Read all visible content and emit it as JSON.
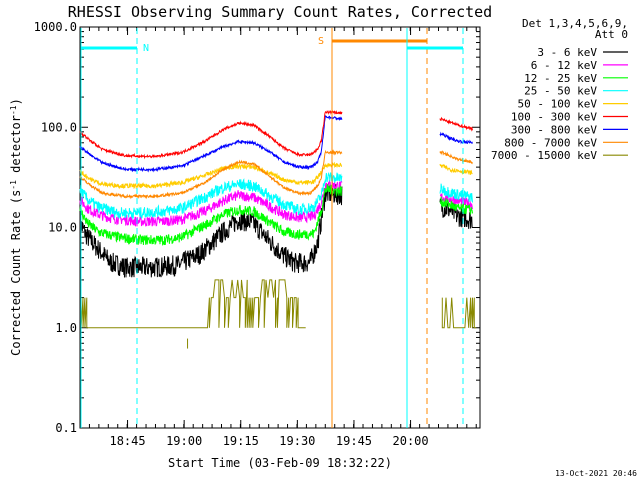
{
  "chart_data": {
    "type": "line",
    "title": "RHESSI Observing Summary Count Rates, Corrected",
    "xlabel": "Start Time (03-Feb-09 18:32:22)",
    "ylabel_pre": "Corrected Count Rate (s",
    "ylabel_exp1": "-1",
    "ylabel_mid": " detector",
    "ylabel_exp2": "-1",
    "ylabel_post": ")",
    "yscale": "log",
    "ylim": [
      0.1,
      1000
    ],
    "xlim_minutes": [
      0,
      106
    ],
    "x_ticks": [
      {
        "label": "18:45",
        "minute": 12.6
      },
      {
        "label": "19:00",
        "minute": 27.6
      },
      {
        "label": "19:15",
        "minute": 42.6
      },
      {
        "label": "19:30",
        "minute": 57.6
      },
      {
        "label": "19:45",
        "minute": 72.6
      },
      {
        "label": "20:00",
        "minute": 87.6
      }
    ],
    "y_ticks": [
      {
        "label": "1000.0",
        "value": 1000
      },
      {
        "label": "100.0",
        "value": 100
      },
      {
        "label": "10.0",
        "value": 10
      },
      {
        "label": "1.0",
        "value": 1
      },
      {
        "label": "0.1",
        "value": 0.1
      }
    ],
    "legend_title_1": "Det 1,3,4,5,6,9,",
    "legend_title_2": "Att 0",
    "timestamp": "13-Oct-2021 20:46",
    "data_gaps_minutes": [
      [
        69.5,
        95.4
      ]
    ],
    "series": [
      {
        "name": "3 - 6 keV",
        "color": "#000000",
        "noise": 0.24,
        "points": [
          [
            0,
            11
          ],
          [
            2,
            8
          ],
          [
            5,
            6
          ],
          [
            8,
            4.5
          ],
          [
            12,
            4
          ],
          [
            20,
            4
          ],
          [
            26,
            4.2
          ],
          [
            32,
            5.5
          ],
          [
            38,
            9
          ],
          [
            42,
            12
          ],
          [
            46,
            11
          ],
          [
            50,
            7.5
          ],
          [
            54,
            5.2
          ],
          [
            57,
            4.4
          ],
          [
            61,
            4.5
          ],
          [
            63,
            7
          ],
          [
            65,
            22
          ],
          [
            96,
            16
          ],
          [
            98,
            15
          ],
          [
            100,
            13
          ],
          [
            104,
            12
          ]
        ]
      },
      {
        "name": "6 - 12 keV",
        "color": "#ff00ff",
        "noise": 0.12,
        "points": [
          [
            0,
            19
          ],
          [
            2,
            15.5
          ],
          [
            5,
            13.5
          ],
          [
            8,
            12.5
          ],
          [
            15,
            11.5
          ],
          [
            22,
            11.5
          ],
          [
            27,
            12
          ],
          [
            33,
            14.5
          ],
          [
            38,
            18.5
          ],
          [
            42,
            21
          ],
          [
            46,
            20
          ],
          [
            50,
            16.5
          ],
          [
            54,
            13.5
          ],
          [
            58,
            12.5
          ],
          [
            62,
            13
          ],
          [
            64,
            18
          ],
          [
            65,
            27
          ],
          [
            96,
            20
          ],
          [
            98,
            19.5
          ],
          [
            100,
            18.5
          ],
          [
            104,
            17
          ]
        ]
      },
      {
        "name": "12 - 25 keV",
        "color": "#00ff00",
        "noise": 0.12,
        "points": [
          [
            0,
            15
          ],
          [
            2,
            11
          ],
          [
            5,
            9
          ],
          [
            10,
            8
          ],
          [
            16,
            7.5
          ],
          [
            22,
            7.5
          ],
          [
            27,
            8
          ],
          [
            33,
            10.5
          ],
          [
            38,
            13.5
          ],
          [
            42,
            15
          ],
          [
            46,
            14.5
          ],
          [
            50,
            11.5
          ],
          [
            54,
            9
          ],
          [
            58,
            8.5
          ],
          [
            62,
            8.7
          ],
          [
            64,
            15
          ],
          [
            65,
            24
          ],
          [
            96,
            18
          ],
          [
            98,
            17
          ],
          [
            100,
            15.5
          ],
          [
            104,
            15
          ]
        ]
      },
      {
        "name": "25 - 50 keV",
        "color": "#00ffff",
        "noise": 0.13,
        "points": [
          [
            0,
            24
          ],
          [
            2,
            19
          ],
          [
            5,
            16
          ],
          [
            10,
            14
          ],
          [
            16,
            14
          ],
          [
            22,
            14.5
          ],
          [
            27,
            15.5
          ],
          [
            33,
            20
          ],
          [
            38,
            25
          ],
          [
            42,
            27
          ],
          [
            46,
            26
          ],
          [
            50,
            21
          ],
          [
            54,
            17
          ],
          [
            58,
            15
          ],
          [
            62,
            16
          ],
          [
            64,
            21
          ],
          [
            65,
            32
          ],
          [
            96,
            24
          ],
          [
            98,
            22.5
          ],
          [
            100,
            21.5
          ],
          [
            104,
            20
          ]
        ]
      },
      {
        "name": "50 - 100 keV",
        "color": "#ffcc00",
        "noise": 0.05,
        "points": [
          [
            0,
            36
          ],
          [
            3,
            30
          ],
          [
            6,
            27
          ],
          [
            12,
            26
          ],
          [
            20,
            26
          ],
          [
            27,
            28
          ],
          [
            33,
            33
          ],
          [
            38,
            39
          ],
          [
            42,
            41
          ],
          [
            46,
            40
          ],
          [
            50,
            35
          ],
          [
            54,
            30
          ],
          [
            58,
            28
          ],
          [
            62,
            28.5
          ],
          [
            64,
            36
          ],
          [
            65,
            42
          ],
          [
            96,
            41
          ],
          [
            98,
            38
          ],
          [
            100,
            37
          ],
          [
            104,
            35
          ]
        ]
      },
      {
        "name": "100 - 300 keV",
        "color": "#ff0000",
        "noise": 0.03,
        "points": [
          [
            0,
            90
          ],
          [
            3,
            72
          ],
          [
            6,
            60
          ],
          [
            12,
            52
          ],
          [
            20,
            51
          ],
          [
            27,
            56
          ],
          [
            33,
            72
          ],
          [
            38,
            95
          ],
          [
            42,
            110
          ],
          [
            46,
            105
          ],
          [
            50,
            82
          ],
          [
            54,
            62
          ],
          [
            58,
            53
          ],
          [
            61,
            53
          ],
          [
            63,
            60
          ],
          [
            64,
            75
          ],
          [
            65,
            142
          ],
          [
            96,
            120
          ],
          [
            98,
            112
          ],
          [
            100,
            106
          ],
          [
            104,
            96
          ]
        ]
      },
      {
        "name": "300 - 800 keV",
        "color": "#0000ff",
        "noise": 0.03,
        "points": [
          [
            0,
            64
          ],
          [
            3,
            52
          ],
          [
            6,
            44
          ],
          [
            12,
            38
          ],
          [
            20,
            38
          ],
          [
            27,
            41
          ],
          [
            33,
            52
          ],
          [
            38,
            64
          ],
          [
            42,
            72
          ],
          [
            46,
            70
          ],
          [
            50,
            58
          ],
          [
            54,
            45
          ],
          [
            58,
            40
          ],
          [
            61,
            40
          ],
          [
            63,
            45
          ],
          [
            64,
            58
          ],
          [
            65,
            128
          ],
          [
            96,
            85
          ],
          [
            98,
            78
          ],
          [
            100,
            73
          ],
          [
            104,
            70
          ]
        ]
      },
      {
        "name": "800 - 7000 keV",
        "color": "#ff8800",
        "noise": 0.03,
        "points": [
          [
            0,
            32
          ],
          [
            3,
            26
          ],
          [
            6,
            22
          ],
          [
            12,
            20.5
          ],
          [
            20,
            20.5
          ],
          [
            27,
            22
          ],
          [
            33,
            28
          ],
          [
            38,
            38
          ],
          [
            42,
            45
          ],
          [
            46,
            43
          ],
          [
            50,
            33
          ],
          [
            54,
            25
          ],
          [
            58,
            22
          ],
          [
            61,
            22
          ],
          [
            63,
            26
          ],
          [
            64,
            32
          ],
          [
            65,
            56
          ],
          [
            96,
            56
          ],
          [
            98,
            52
          ],
          [
            100,
            48
          ],
          [
            104,
            45
          ]
        ]
      },
      {
        "name": "7000 - 15000 keV",
        "color": "#888800",
        "noise": 0,
        "points": []
      }
    ]
  },
  "markers": {
    "saa_label": "S",
    "night_label": "N"
  }
}
